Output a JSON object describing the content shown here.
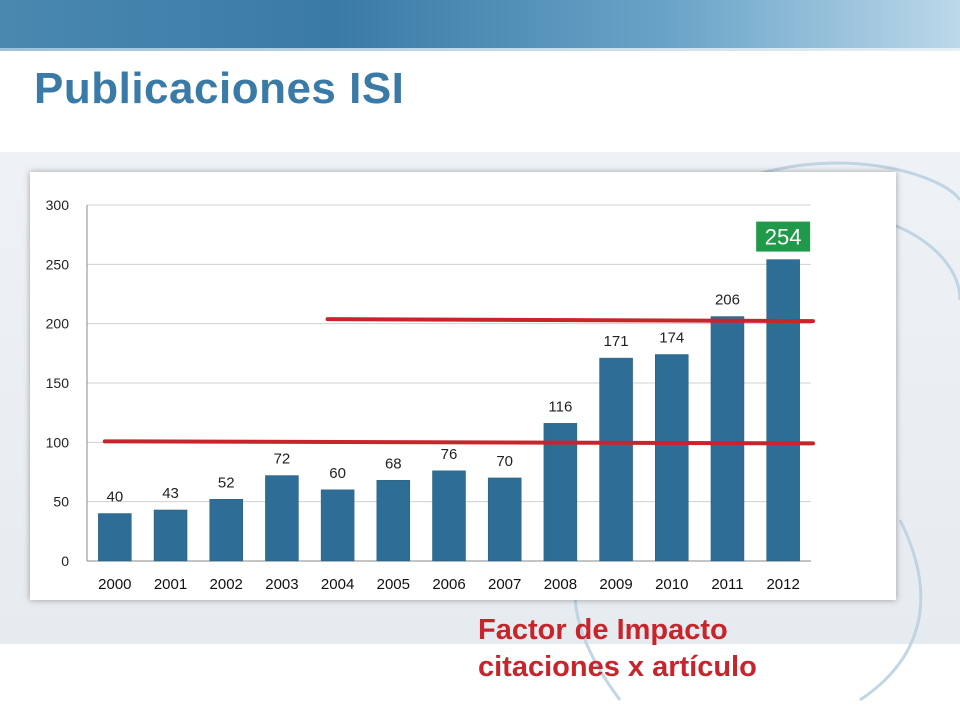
{
  "slide": {
    "title": "Publicaciones ISI",
    "note_line1": "Factor de Impacto",
    "note_line2": "citaciones x artículo"
  },
  "colors": {
    "bar": "#2e6e96",
    "highlight_bg": "#1f9a4a",
    "highlight_text": "#ffffff",
    "reference_line": "#c8242b",
    "title": "#3a7aa6"
  },
  "chart_data": {
    "type": "bar",
    "title": "",
    "xlabel": "",
    "ylabel": "",
    "categories": [
      "2000",
      "2001",
      "2002",
      "2003",
      "2004",
      "2005",
      "2006",
      "2007",
      "2008",
      "2009",
      "2010",
      "2011",
      "2012"
    ],
    "values": [
      40,
      43,
      52,
      72,
      60,
      68,
      76,
      70,
      116,
      171,
      174,
      206,
      254
    ],
    "ylim": [
      0,
      300
    ],
    "yticks": [
      0,
      50,
      100,
      150,
      200,
      250,
      300
    ],
    "grid": true,
    "legend": "none",
    "highlighted_category": "2012",
    "reference_lines": [
      {
        "value": 100,
        "from": "2000",
        "to": "2012"
      },
      {
        "value": 203,
        "from": "2004",
        "to": "2012"
      }
    ]
  }
}
